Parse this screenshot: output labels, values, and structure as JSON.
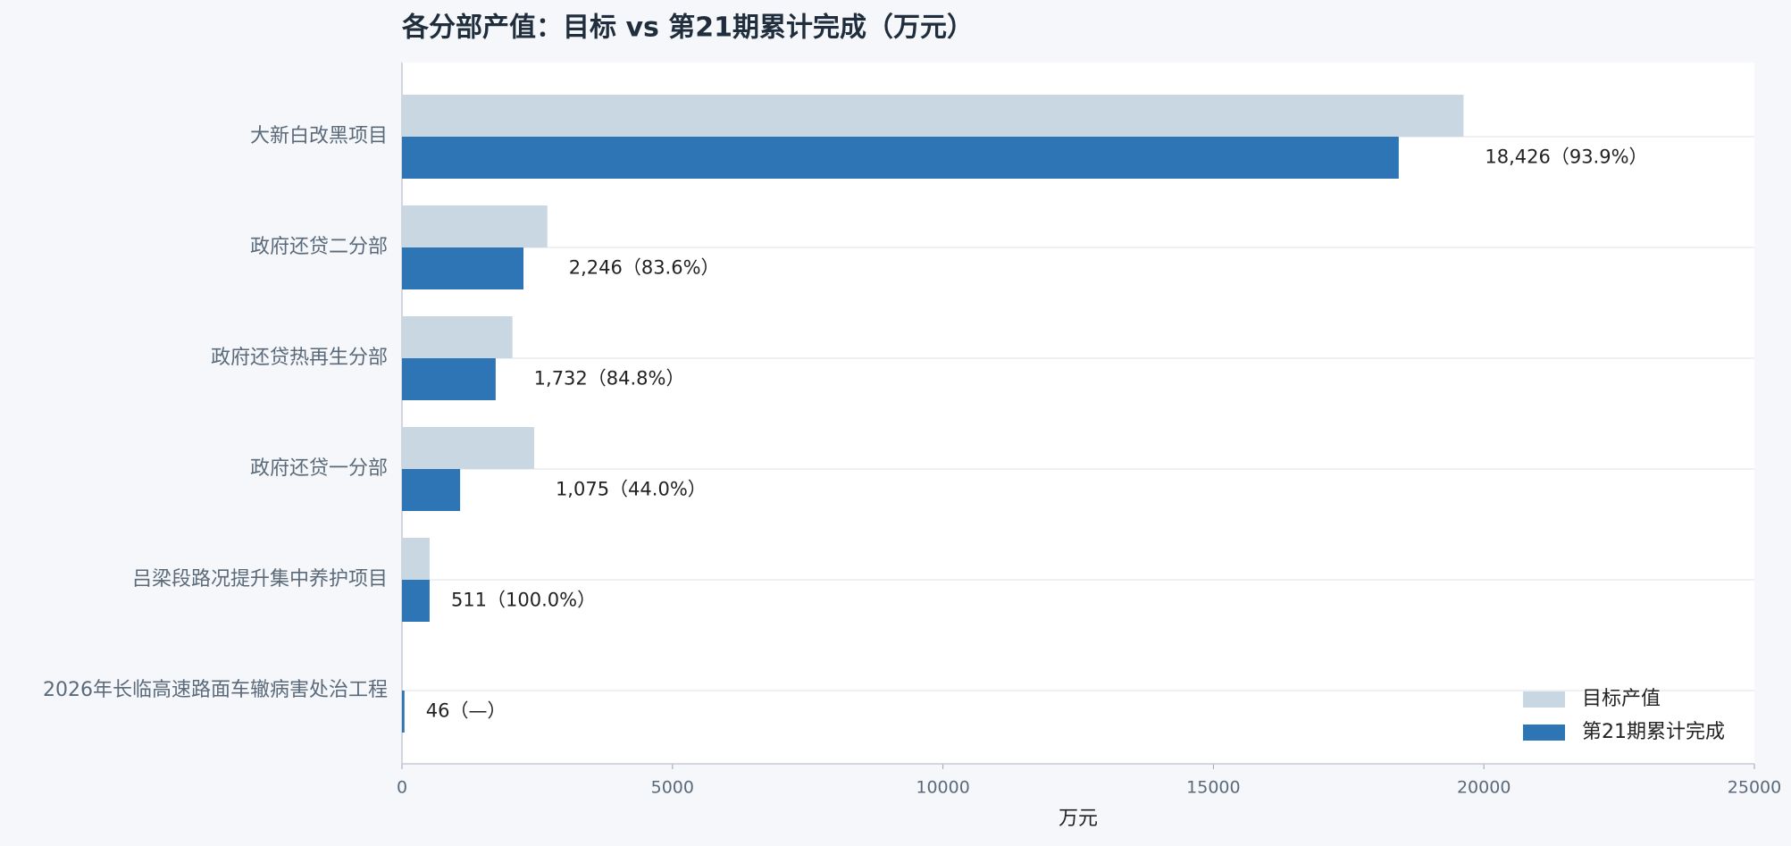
{
  "chart_data": {
    "type": "barh",
    "title": "各分部产值：目标 vs 第21期累计完成（万元）",
    "categories": [
      "大新白改黑项目",
      "政府还贷二分部",
      "政府还贷热再生分部",
      "政府还贷一分部",
      "吕梁段路况提升集中养护项目",
      "2026年长临高速路面车辙病害处治工程"
    ],
    "series": [
      {
        "name": "目标产值",
        "color": "#c9d7e3",
        "values": [
          19623,
          2687,
          2042,
          2443,
          511,
          null
        ]
      },
      {
        "name": "第21期累计完成",
        "color": "#2e75b6",
        "values": [
          18426,
          2246,
          1732,
          1075,
          511,
          46
        ],
        "value_labels": [
          "18,426（93.9%）",
          "2,246（83.6%）",
          "1,732（84.8%）",
          "1,075（44.0%）",
          "511（100.0%）",
          "46（—）"
        ]
      }
    ],
    "x_label": "万元",
    "xlim": [
      0,
      25000
    ],
    "xticks": [
      0,
      5000,
      10000,
      15000,
      20000,
      25000
    ],
    "grid": true,
    "legend": "lower right"
  }
}
